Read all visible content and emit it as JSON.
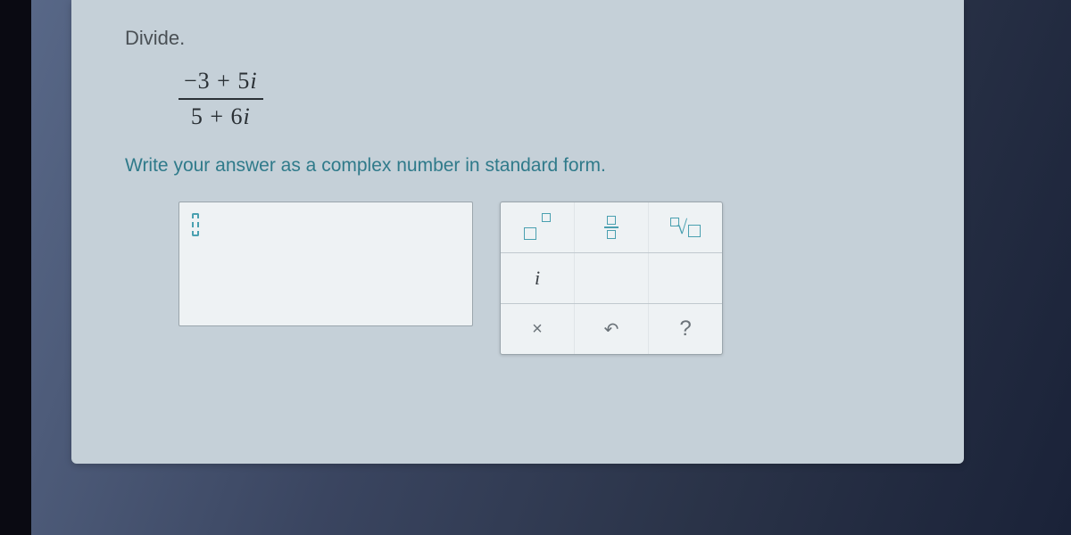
{
  "problem": {
    "title": "Divide.",
    "fraction": {
      "numerator_prefix": "−3 + 5",
      "numerator_i": "i",
      "denominator_prefix": "5 + 6",
      "denominator_i": "i"
    },
    "instruction": "Write your answer as a complex number in standard form."
  },
  "answer_box": {
    "value": "",
    "placeholder": ""
  },
  "toolbox": {
    "exponent_label": "exponent",
    "fraction_label": "fraction",
    "root_label": "nth-root",
    "i_label": "i",
    "clear_label": "×",
    "undo_label": "↶",
    "help_label": "?"
  },
  "colors": {
    "panel_bg": "#c5d0d8",
    "accent": "#4aa0b0",
    "text_dark": "#2a3035",
    "instruction": "#2f7a8a",
    "tool_border": "#9aa5ac"
  }
}
